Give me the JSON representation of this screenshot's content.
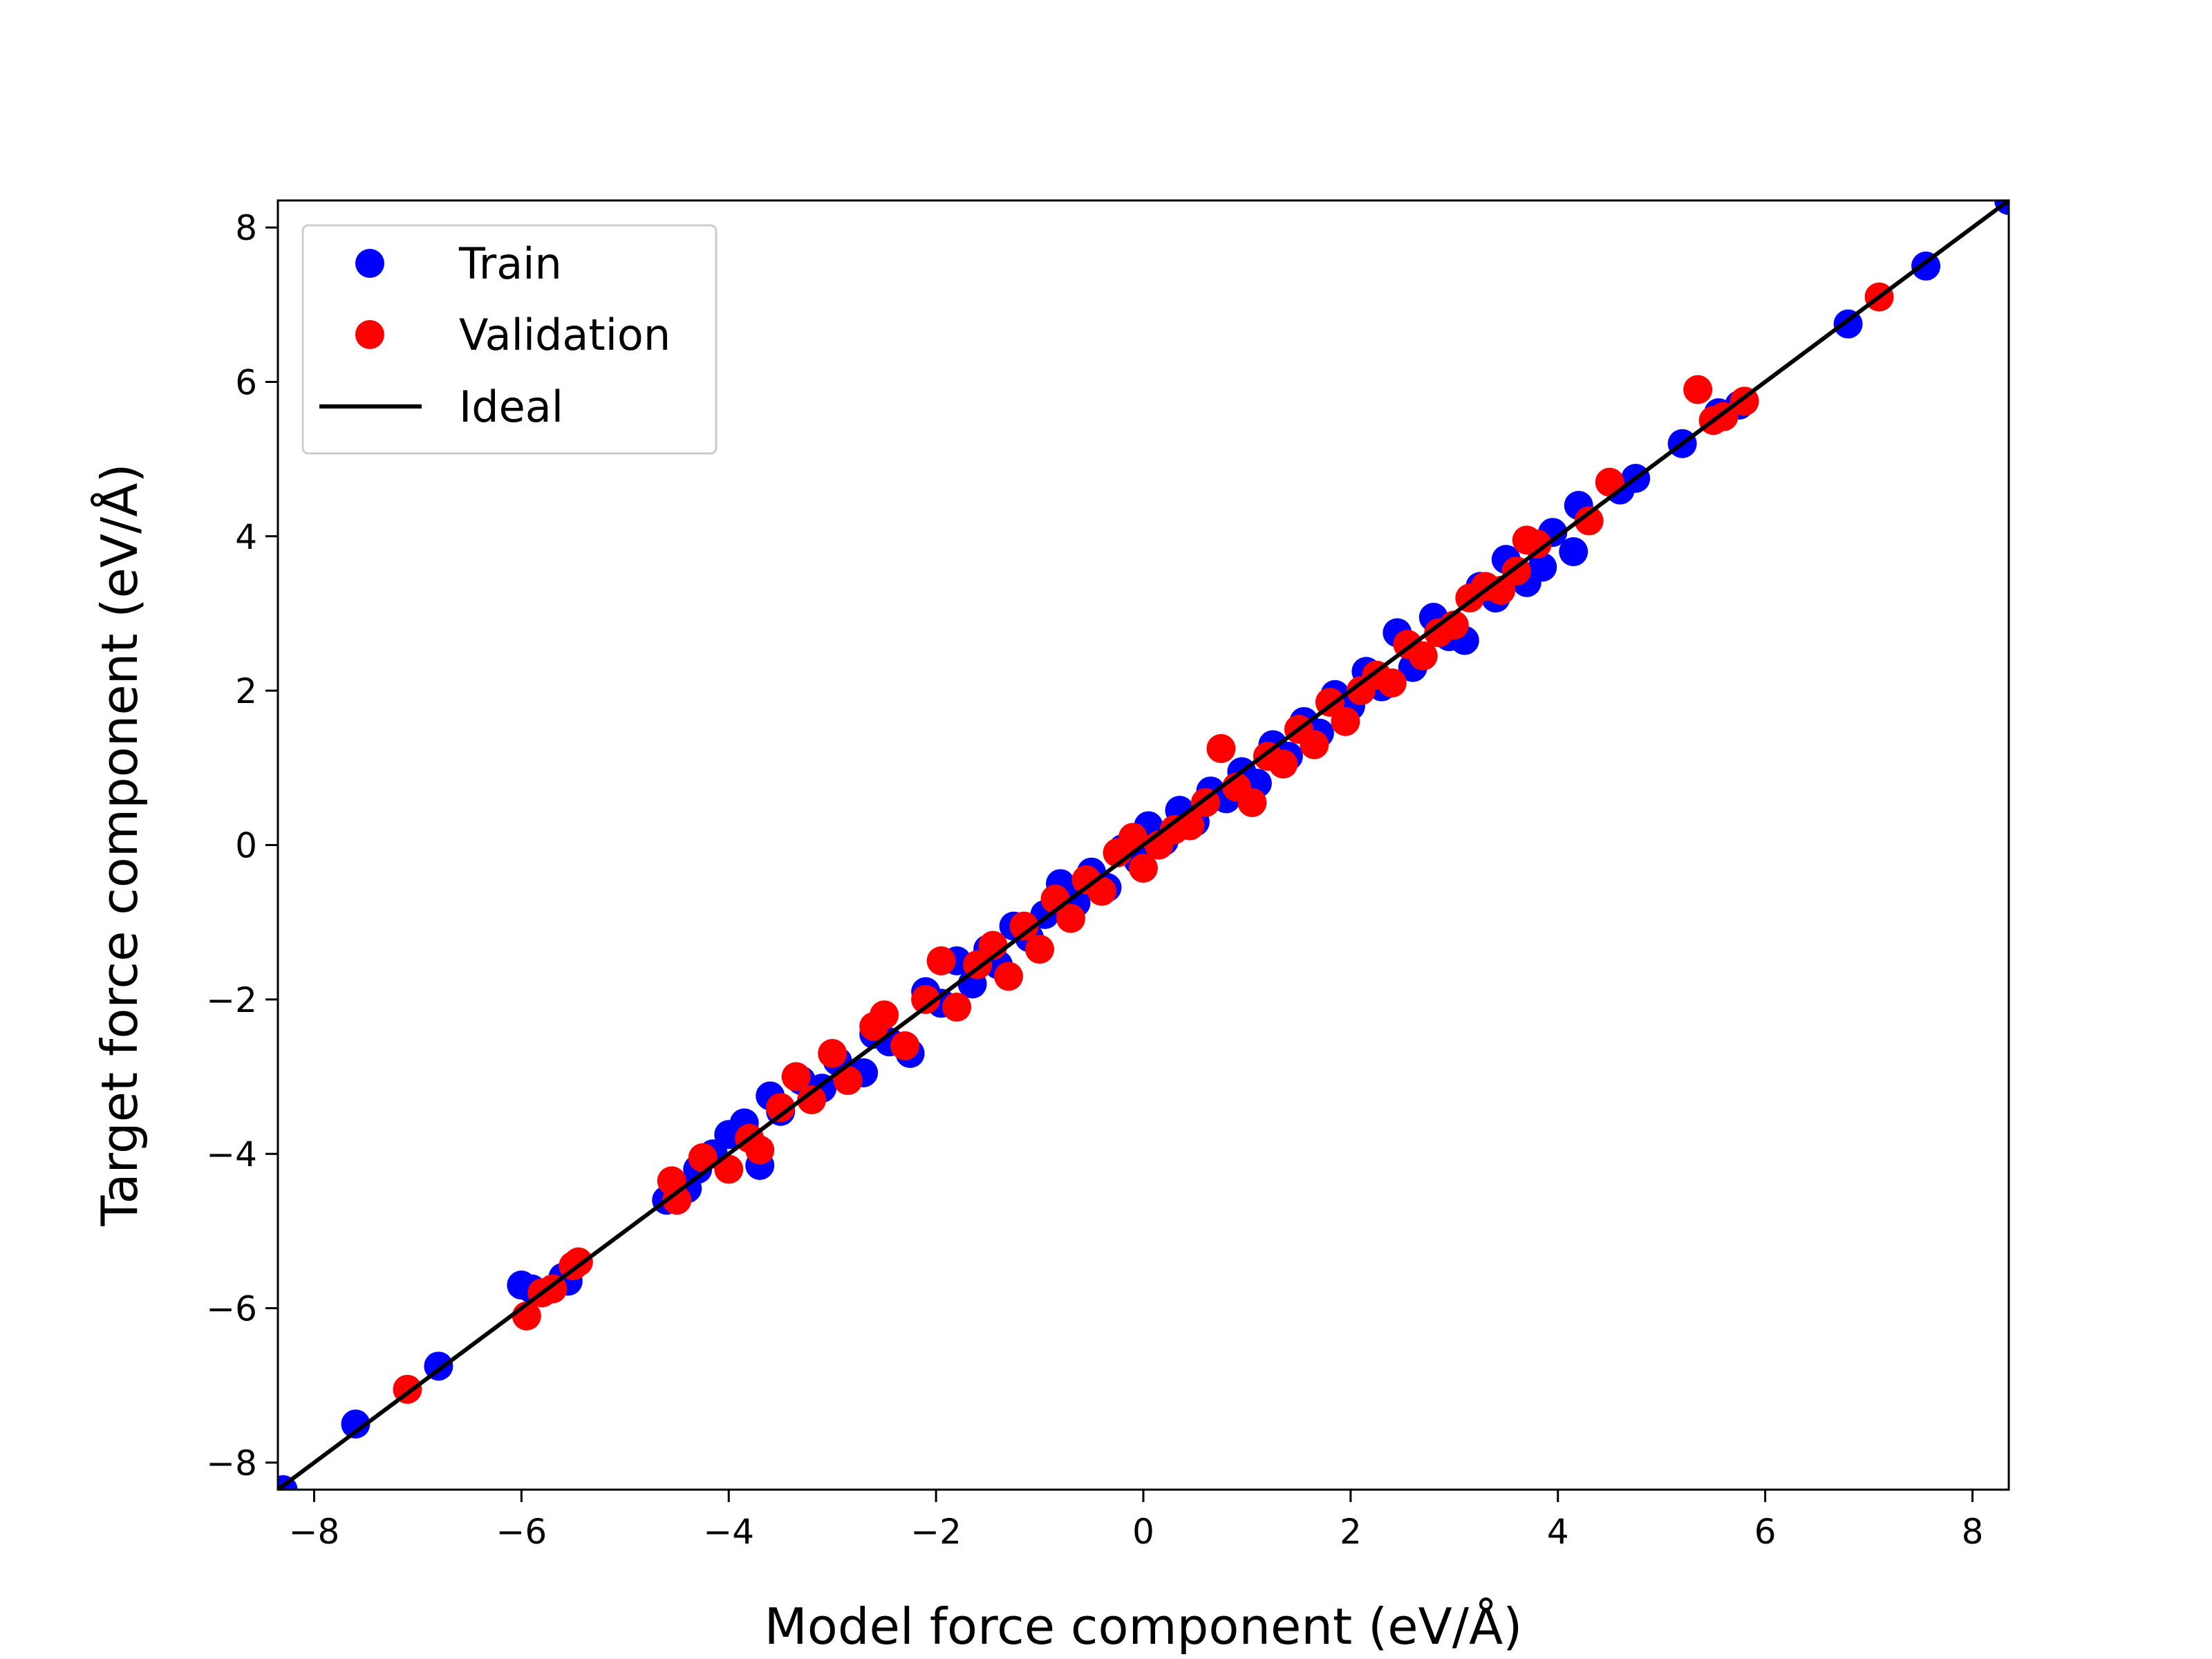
{
  "chart_data": {
    "type": "scatter",
    "xlabel": "Model force component (eV/Å)",
    "ylabel": "Target force component (eV/Å)",
    "xlim": [
      -8.35,
      8.35
    ],
    "ylim": [
      -8.35,
      8.35
    ],
    "x_ticks": [
      -8,
      -6,
      -4,
      -2,
      0,
      2,
      4,
      6,
      8
    ],
    "y_ticks": [
      -8,
      -6,
      -4,
      -2,
      0,
      2,
      4,
      6,
      8
    ],
    "x_tick_labels": [
      "−8",
      "−6",
      "−4",
      "−2",
      "0",
      "2",
      "4",
      "6",
      "8"
    ],
    "y_tick_labels": [
      "−8",
      "−6",
      "−4",
      "−2",
      "0",
      "2",
      "4",
      "6",
      "8"
    ],
    "grid": false,
    "legend_position": "top-left",
    "series": [
      {
        "name": "Train",
        "type": "scatter",
        "color": "#0000ff",
        "points": [
          [
            -8.3,
            -8.35
          ],
          [
            -7.6,
            -7.5
          ],
          [
            -6.8,
            -6.75
          ],
          [
            -6.0,
            -5.7
          ],
          [
            -5.9,
            -5.75
          ],
          [
            -5.6,
            -5.6
          ],
          [
            -5.55,
            -5.65
          ],
          [
            -4.6,
            -4.6
          ],
          [
            -4.4,
            -4.45
          ],
          [
            -4.3,
            -4.2
          ],
          [
            -4.15,
            -4.0
          ],
          [
            -4.0,
            -3.75
          ],
          [
            -3.85,
            -3.6
          ],
          [
            -3.7,
            -4.15
          ],
          [
            -3.6,
            -3.25
          ],
          [
            -3.5,
            -3.45
          ],
          [
            -3.3,
            -3.05
          ],
          [
            -3.1,
            -3.15
          ],
          [
            -2.95,
            -2.8
          ],
          [
            -2.7,
            -2.95
          ],
          [
            -2.6,
            -2.45
          ],
          [
            -2.45,
            -2.55
          ],
          [
            -2.25,
            -2.7
          ],
          [
            -2.1,
            -1.9
          ],
          [
            -1.95,
            -2.05
          ],
          [
            -1.8,
            -1.5
          ],
          [
            -1.65,
            -1.8
          ],
          [
            -1.5,
            -1.35
          ],
          [
            -1.4,
            -1.55
          ],
          [
            -1.25,
            -1.05
          ],
          [
            -1.1,
            -1.2
          ],
          [
            -0.95,
            -0.9
          ],
          [
            -0.8,
            -0.5
          ],
          [
            -0.65,
            -0.75
          ],
          [
            -0.5,
            -0.35
          ],
          [
            -0.35,
            -0.55
          ],
          [
            -0.2,
            -0.05
          ],
          [
            -0.05,
            -0.2
          ],
          [
            0.05,
            0.25
          ],
          [
            0.2,
            0.05
          ],
          [
            0.35,
            0.45
          ],
          [
            0.5,
            0.3
          ],
          [
            0.65,
            0.7
          ],
          [
            0.8,
            0.6
          ],
          [
            0.95,
            0.95
          ],
          [
            1.1,
            0.8
          ],
          [
            1.25,
            1.3
          ],
          [
            1.4,
            1.15
          ],
          [
            1.55,
            1.6
          ],
          [
            1.7,
            1.45
          ],
          [
            1.85,
            1.95
          ],
          [
            2.0,
            1.8
          ],
          [
            2.15,
            2.25
          ],
          [
            2.3,
            2.05
          ],
          [
            2.45,
            2.75
          ],
          [
            2.6,
            2.3
          ],
          [
            2.8,
            2.95
          ],
          [
            2.95,
            2.7
          ],
          [
            3.1,
            2.65
          ],
          [
            3.25,
            3.35
          ],
          [
            3.4,
            3.2
          ],
          [
            3.5,
            3.7
          ],
          [
            3.7,
            3.4
          ],
          [
            3.85,
            3.6
          ],
          [
            3.95,
            4.05
          ],
          [
            4.15,
            3.8
          ],
          [
            4.2,
            4.4
          ],
          [
            4.6,
            4.6
          ],
          [
            4.75,
            4.75
          ],
          [
            5.2,
            5.2
          ],
          [
            5.55,
            5.6
          ],
          [
            5.75,
            5.7
          ],
          [
            6.8,
            6.75
          ],
          [
            7.55,
            7.5
          ],
          [
            8.35,
            8.35
          ]
        ]
      },
      {
        "name": "Validation",
        "type": "scatter",
        "color": "#ff0000",
        "points": [
          [
            -7.1,
            -7.05
          ],
          [
            -5.95,
            -6.1
          ],
          [
            -5.8,
            -5.8
          ],
          [
            -5.7,
            -5.75
          ],
          [
            -5.5,
            -5.45
          ],
          [
            -5.45,
            -5.4
          ],
          [
            -4.55,
            -4.35
          ],
          [
            -4.5,
            -4.6
          ],
          [
            -4.25,
            -4.05
          ],
          [
            -4.0,
            -4.2
          ],
          [
            -3.8,
            -3.8
          ],
          [
            -3.7,
            -3.95
          ],
          [
            -3.5,
            -3.4
          ],
          [
            -3.35,
            -3.0
          ],
          [
            -3.2,
            -3.3
          ],
          [
            -3.0,
            -2.7
          ],
          [
            -2.85,
            -3.05
          ],
          [
            -2.6,
            -2.35
          ],
          [
            -2.5,
            -2.2
          ],
          [
            -2.3,
            -2.6
          ],
          [
            -2.1,
            -2.0
          ],
          [
            -1.95,
            -1.5
          ],
          [
            -1.8,
            -2.1
          ],
          [
            -1.6,
            -1.55
          ],
          [
            -1.45,
            -1.3
          ],
          [
            -1.3,
            -1.7
          ],
          [
            -1.15,
            -1.05
          ],
          [
            -1.0,
            -1.35
          ],
          [
            -0.85,
            -0.7
          ],
          [
            -0.7,
            -0.95
          ],
          [
            -0.55,
            -0.45
          ],
          [
            -0.4,
            -0.6
          ],
          [
            -0.25,
            -0.1
          ],
          [
            -0.1,
            0.1
          ],
          [
            0.0,
            -0.3
          ],
          [
            0.15,
            0.0
          ],
          [
            0.3,
            0.2
          ],
          [
            0.45,
            0.25
          ],
          [
            0.6,
            0.55
          ],
          [
            0.75,
            1.25
          ],
          [
            0.9,
            0.75
          ],
          [
            1.05,
            0.55
          ],
          [
            1.2,
            1.15
          ],
          [
            1.35,
            1.05
          ],
          [
            1.5,
            1.5
          ],
          [
            1.65,
            1.3
          ],
          [
            1.8,
            1.85
          ],
          [
            1.95,
            1.6
          ],
          [
            2.1,
            2.0
          ],
          [
            2.25,
            2.2
          ],
          [
            2.4,
            2.1
          ],
          [
            2.55,
            2.6
          ],
          [
            2.7,
            2.45
          ],
          [
            2.85,
            2.75
          ],
          [
            3.0,
            2.85
          ],
          [
            3.15,
            3.2
          ],
          [
            3.3,
            3.35
          ],
          [
            3.45,
            3.3
          ],
          [
            3.6,
            3.55
          ],
          [
            3.7,
            3.95
          ],
          [
            3.8,
            3.9
          ],
          [
            4.3,
            4.2
          ],
          [
            4.5,
            4.7
          ],
          [
            5.35,
            5.9
          ],
          [
            5.5,
            5.5
          ],
          [
            5.6,
            5.55
          ],
          [
            5.8,
            5.75
          ],
          [
            7.1,
            7.1
          ]
        ]
      },
      {
        "name": "Ideal",
        "type": "line",
        "color": "#000000",
        "points": [
          [
            -8.35,
            -8.35
          ],
          [
            8.35,
            8.35
          ]
        ]
      }
    ]
  }
}
